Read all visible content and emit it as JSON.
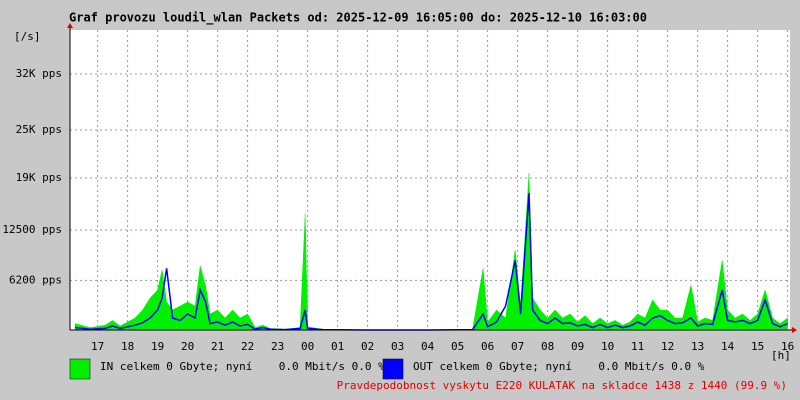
{
  "chart_data": {
    "type": "line",
    "title": "Graf provozu loudil_wlan Packets od: 2025-12-09 16:05:00 do: 2025-12-10 16:03:00",
    "y_label": "[/s]",
    "x_label": "[h]",
    "x": [
      16.25,
      16.75,
      17.25,
      17.5,
      17.75,
      18.25,
      18.5,
      18.75,
      19.0,
      19.15,
      19.3,
      19.5,
      19.75,
      20.0,
      20.25,
      20.42,
      20.6,
      20.75,
      21.0,
      21.25,
      21.5,
      21.75,
      22.0,
      22.25,
      22.5,
      22.75,
      23.25,
      23.75,
      23.92,
      24.0,
      24.5,
      26.0,
      28.0,
      29.5,
      29.85,
      30.0,
      30.3,
      30.6,
      30.92,
      31.1,
      31.38,
      31.5,
      31.75,
      32.0,
      32.25,
      32.5,
      32.75,
      33.0,
      33.25,
      33.5,
      33.75,
      34.0,
      34.25,
      34.5,
      34.75,
      35.0,
      35.25,
      35.5,
      35.75,
      36.0,
      36.25,
      36.5,
      36.78,
      37.0,
      37.25,
      37.5,
      37.82,
      38.0,
      38.25,
      38.5,
      38.75,
      39.0,
      39.25,
      39.5,
      39.75,
      40.0
    ],
    "series": [
      {
        "name": "IN celkem 0 Gbyte; nyní    0.0 Mbit/s 0.0 %",
        "color": "#00f000",
        "fill": true,
        "values": [
          800,
          300,
          600,
          1200,
          500,
          1500,
          2500,
          4000,
          5000,
          7500,
          3500,
          2500,
          3000,
          3500,
          3000,
          8000,
          5500,
          2000,
          2500,
          1500,
          2500,
          1500,
          2000,
          300,
          600,
          200,
          100,
          300,
          14600,
          400,
          100,
          0,
          0,
          100,
          7700,
          1000,
          2500,
          1500,
          10000,
          3000,
          19600,
          4000,
          2500,
          1500,
          2500,
          1500,
          2000,
          1000,
          1800,
          800,
          1500,
          800,
          1200,
          600,
          1000,
          2000,
          1500,
          3750,
          2500,
          2500,
          1500,
          1500,
          5600,
          1000,
          1500,
          1200,
          8700,
          2500,
          1500,
          2000,
          1200,
          2000,
          5000,
          1500,
          800,
          1500
        ]
      },
      {
        "name": "OUT celkem 0 Gbyte; nyní    0.0 Mbit/s 0.0 %",
        "color": "#0000ff",
        "fill": false,
        "values": [
          300,
          100,
          200,
          500,
          200,
          600,
          900,
          1500,
          2500,
          4000,
          7700,
          1500,
          1200,
          2000,
          1500,
          5000,
          3500,
          800,
          1000,
          600,
          1000,
          500,
          700,
          100,
          300,
          100,
          50,
          200,
          2500,
          200,
          50,
          0,
          0,
          50,
          2000,
          400,
          1000,
          3000,
          8700,
          2000,
          17100,
          2500,
          1200,
          800,
          1500,
          800,
          900,
          500,
          700,
          300,
          700,
          300,
          600,
          300,
          500,
          1000,
          600,
          1500,
          1800,
          1200,
          800,
          900,
          1500,
          500,
          800,
          700,
          5000,
          1200,
          1000,
          1200,
          800,
          1200,
          3750,
          800,
          400,
          800
        ]
      }
    ],
    "xlim": [
      16.08,
      40.08
    ],
    "xticks": [
      17,
      18,
      19,
      20,
      21,
      22,
      23,
      {
        "value": 24,
        "label": "00"
      },
      {
        "value": 25,
        "label": "01"
      },
      {
        "value": 26,
        "label": "02"
      },
      {
        "value": 27,
        "label": "03"
      },
      {
        "value": 28,
        "label": "04"
      },
      {
        "value": 29,
        "label": "05"
      },
      {
        "value": 30,
        "label": "06"
      },
      {
        "value": 31,
        "label": "07"
      },
      {
        "value": 32,
        "label": "08"
      },
      {
        "value": 33,
        "label": "09"
      },
      {
        "value": 34,
        "label": "10"
      },
      {
        "value": 35,
        "label": "11"
      },
      {
        "value": 36,
        "label": "12"
      },
      {
        "value": 37,
        "label": "13"
      },
      {
        "value": 38,
        "label": "14"
      },
      {
        "value": 39,
        "label": "15"
      },
      {
        "value": 40,
        "label": "16"
      }
    ],
    "ylim": [
      0,
      37500
    ],
    "yticks": [
      {
        "value": 6200,
        "label": "6200 pps"
      },
      {
        "value": 12500,
        "label": "12500 pps"
      },
      {
        "value": 19000,
        "label": "19K pps"
      },
      {
        "value": 25000,
        "label": "25K pps"
      },
      {
        "value": 32000,
        "label": "32K pps"
      }
    ],
    "grid": true,
    "annotation": "Pravdepodobnost vyskytu E220 KULATAK na skladce 1438 z 1440 (99.9 %)"
  }
}
